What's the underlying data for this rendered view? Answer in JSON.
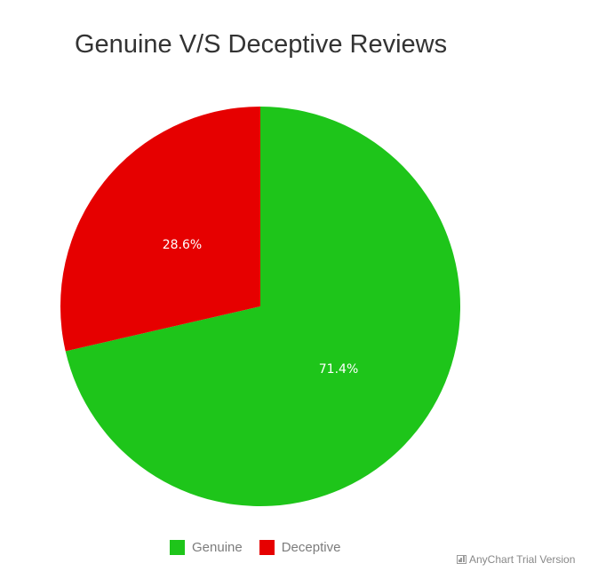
{
  "chart_data": {
    "type": "pie",
    "title": "Genuine V/S Deceptive Reviews",
    "slices": [
      {
        "name": "Genuine",
        "value": 71.4,
        "label": "71.4%",
        "color": "#1ec51a"
      },
      {
        "name": "Deceptive",
        "value": 28.6,
        "label": "28.6%",
        "color": "#e60000"
      }
    ],
    "start": "12 o'clock",
    "direction": "clockwise",
    "legend_position": "bottom"
  },
  "credits": {
    "text": "AnyChart Trial Version",
    "icon": "chart-icon"
  }
}
